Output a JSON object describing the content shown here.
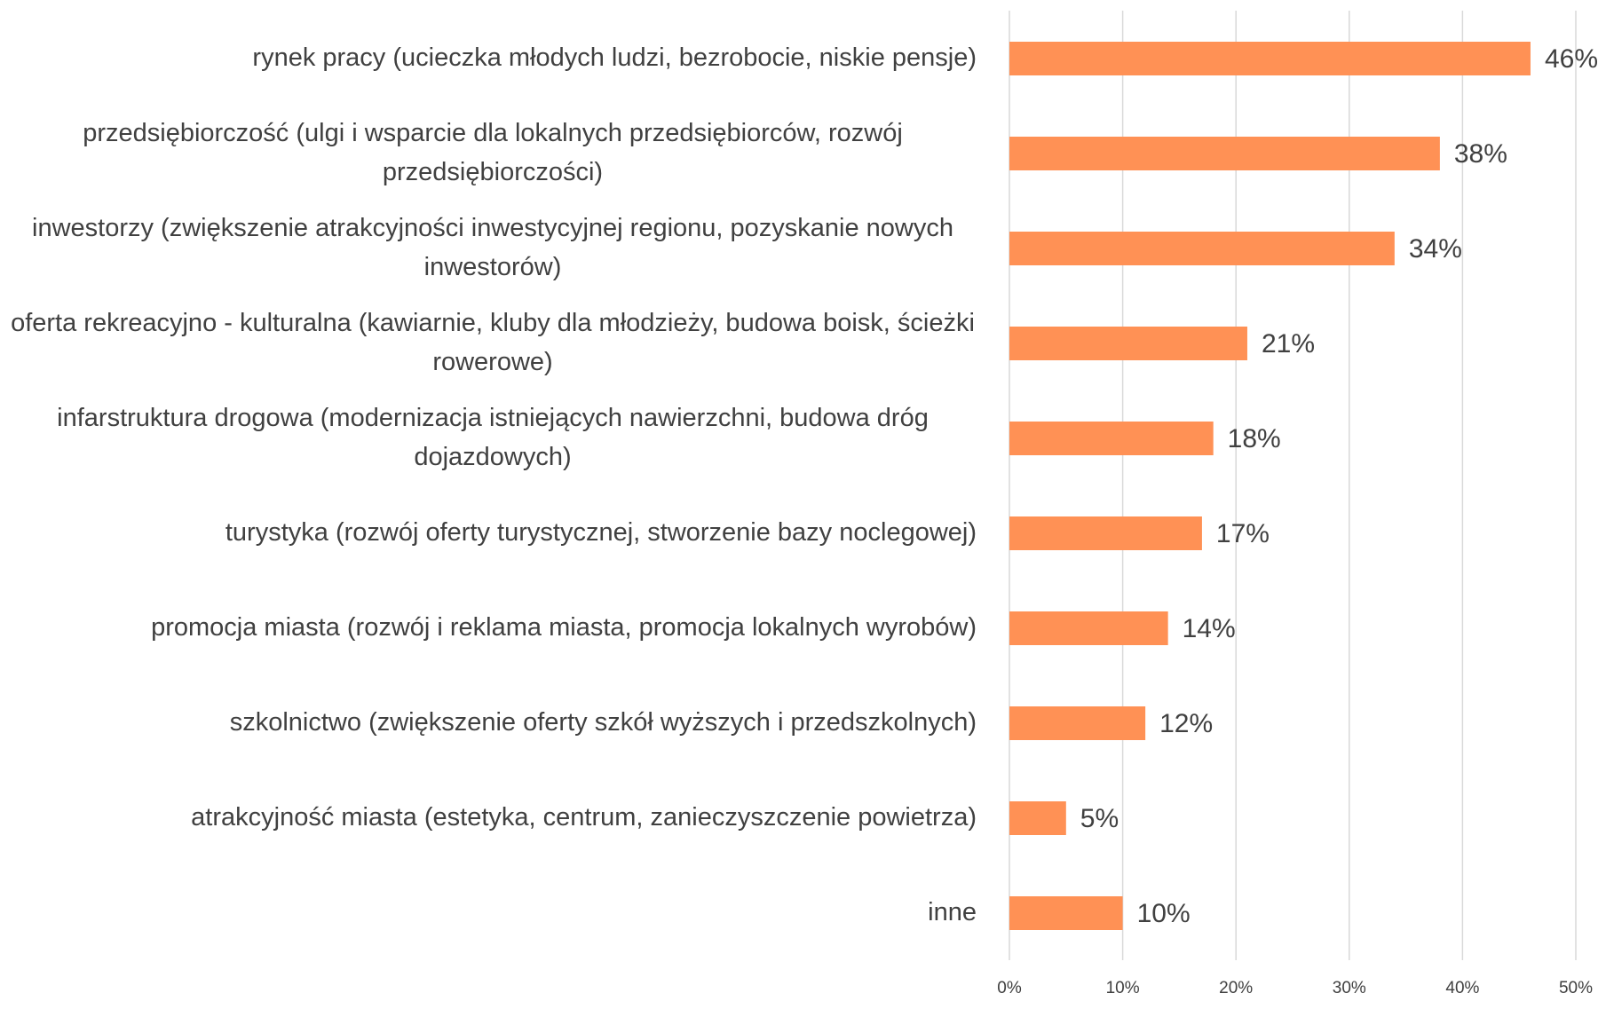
{
  "chart_data": {
    "type": "barh",
    "categories": [
      "rynek pracy (ucieczka młodych ludzi, bezrobocie, niskie pensje)",
      "przedsiębiorczość (ulgi i wsparcie dla lokalnych przedsiębiorców, rozwój przedsiębiorczości)",
      "inwestorzy (zwiększenie atrakcyjności inwestycyjnej regionu, pozyskanie nowych inwestorów)",
      "oferta rekreacyjno - kulturalna (kawiarnie, kluby dla młodzieży, budowa boisk, ścieżki rowerowe)",
      "infarstruktura drogowa (modernizacja istniejących nawierzchni, budowa dróg dojazdowych)",
      "turystyka (rozwój oferty turystycznej, stworzenie bazy noclegowej)",
      "promocja miasta (rozwój i reklama miasta, promocja  lokalnych wyrobów)",
      "szkolnictwo (zwiększenie oferty szkół wyższych i przedszkolnych)",
      "atrakcyjność miasta (estetyka, centrum, zanieczyszczenie powietrza)",
      "inne"
    ],
    "values": [
      46,
      38,
      34,
      21,
      18,
      17,
      14,
      12,
      5,
      10
    ],
    "value_labels": [
      "46%",
      "38%",
      "34%",
      "21%",
      "18%",
      "17%",
      "14%",
      "12%",
      "5%",
      "10%"
    ],
    "color": "#ff9155",
    "xlim": [
      0,
      50
    ],
    "xticks": [
      {
        "value": 0,
        "label": "0%"
      },
      {
        "value": 10,
        "label": "10%"
      },
      {
        "value": 20,
        "label": "20%"
      },
      {
        "value": 30,
        "label": "30%"
      },
      {
        "value": 40,
        "label": "40%"
      },
      {
        "value": 50,
        "label": "50%"
      }
    ],
    "grid": true
  }
}
